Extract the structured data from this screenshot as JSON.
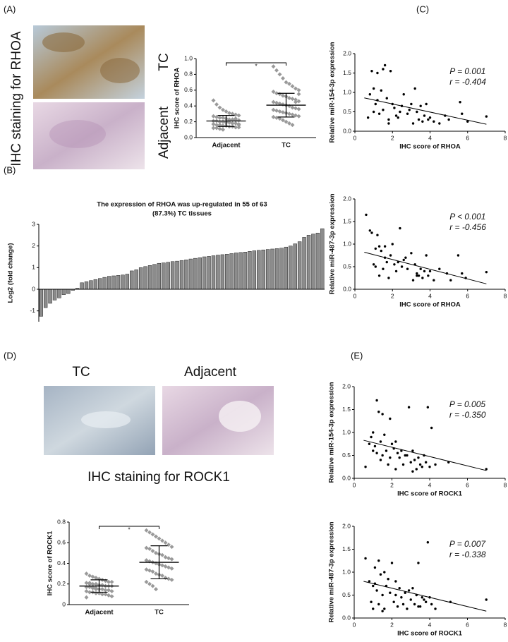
{
  "figure": {
    "panels": [
      "(A)",
      "(B)",
      "(C)",
      "(D)",
      "(E)"
    ],
    "rhoa_staining": "IHC staining for RHOA",
    "rhoa_tc": "TC",
    "rhoa_adjacent": "Adjacent",
    "rock1_tc": "TC",
    "rock1_adjacent": "Adjacent",
    "rock1_staining": "IHC staining for ROCK1"
  },
  "chart_data": [
    {
      "type": "strip",
      "ylabel": "IHC score of RHOA",
      "categories": [
        "Adjacent",
        "TC"
      ],
      "values": [
        [
          0.47,
          0.42,
          0.38,
          0.35,
          0.33,
          0.31,
          0.3,
          0.29,
          0.28,
          0.27,
          0.26,
          0.25,
          0.25,
          0.24,
          0.23,
          0.23,
          0.22,
          0.22,
          0.21,
          0.21,
          0.2,
          0.2,
          0.19,
          0.19,
          0.18,
          0.18,
          0.17,
          0.17,
          0.16,
          0.16,
          0.15,
          0.15,
          0.14,
          0.14,
          0.13,
          0.13,
          0.12,
          0.12,
          0.11,
          0.1,
          0.2,
          0.22,
          0.18,
          0.24,
          0.16
        ],
        [
          0.9,
          0.85,
          0.8,
          0.75,
          0.7,
          0.68,
          0.65,
          0.62,
          0.6,
          0.58,
          0.56,
          0.55,
          0.53,
          0.52,
          0.5,
          0.49,
          0.48,
          0.46,
          0.45,
          0.44,
          0.43,
          0.42,
          0.41,
          0.4,
          0.38,
          0.37,
          0.36,
          0.35,
          0.34,
          0.33,
          0.32,
          0.31,
          0.3,
          0.29,
          0.28,
          0.27,
          0.26,
          0.25,
          0.24,
          0.22,
          0.2,
          0.18,
          0.16,
          0.45,
          0.55
        ]
      ],
      "means": [
        0.21,
        0.41
      ],
      "sds": [
        0.07,
        0.15
      ],
      "color": "#9a9a9a",
      "significance": "*",
      "ylim": [
        0,
        1
      ],
      "yticks": [
        {
          "value": 0,
          "label": "0.0"
        },
        0.2,
        0.4,
        0.6,
        0.8,
        {
          "value": 1,
          "label": "1.0"
        }
      ]
    },
    {
      "type": "bar",
      "title": [
        "The expression of RHOA was up-regulated in 55 of 63",
        "(87.3%) TC tissues"
      ],
      "ylabel": "Log2 (fold change)",
      "color": "#8c8c8c",
      "values": [
        -1.25,
        -0.85,
        -0.65,
        -0.5,
        -0.4,
        -0.25,
        -0.2,
        -0.05,
        0.05,
        0.3,
        0.35,
        0.4,
        0.45,
        0.5,
        0.55,
        0.6,
        0.62,
        0.64,
        0.66,
        0.7,
        0.85,
        0.9,
        1.0,
        1.05,
        1.1,
        1.15,
        1.2,
        1.22,
        1.25,
        1.28,
        1.3,
        1.33,
        1.36,
        1.4,
        1.43,
        1.46,
        1.5,
        1.52,
        1.55,
        1.58,
        1.6,
        1.62,
        1.65,
        1.68,
        1.7,
        1.72,
        1.75,
        1.78,
        1.8,
        1.82,
        1.84,
        1.86,
        1.88,
        1.9,
        1.95,
        2.0,
        2.1,
        2.2,
        2.4,
        2.5,
        2.55,
        2.6,
        2.8
      ],
      "ylim": [
        -1.5,
        3
      ],
      "yticks": [
        -1,
        0,
        1,
        2,
        3
      ]
    },
    {
      "type": "scatter",
      "xlabel": "IHC score of RHOA",
      "ylabel": "Relative miR-154-3p expression",
      "annotations": [
        "P = 0.001",
        "r = -0.404"
      ],
      "color": "#000000",
      "x": [
        0.7,
        0.8,
        0.9,
        1.0,
        1.0,
        1.1,
        1.2,
        1.2,
        1.3,
        1.4,
        1.5,
        1.5,
        1.6,
        1.7,
        1.8,
        1.9,
        2.0,
        2.1,
        2.2,
        2.3,
        2.4,
        2.5,
        2.6,
        2.8,
        3.0,
        3.1,
        3.2,
        3.3,
        3.4,
        3.5,
        3.6,
        3.7,
        3.8,
        3.9,
        4.0,
        4.2,
        4.5,
        4.8,
        5.0,
        5.6,
        5.7,
        6.0,
        7.0,
        1.8,
        2.9
      ],
      "y": [
        0.35,
        0.95,
        1.55,
        0.5,
        1.1,
        0.7,
        0.8,
        1.5,
        0.45,
        1.05,
        0.55,
        1.6,
        1.7,
        0.85,
        0.3,
        1.55,
        0.7,
        0.6,
        0.4,
        0.35,
        0.5,
        0.65,
        0.95,
        0.45,
        0.7,
        0.2,
        1.1,
        0.5,
        0.3,
        0.65,
        0.25,
        0.4,
        0.7,
        0.3,
        0.35,
        0.25,
        0.2,
        0.4,
        0.3,
        0.75,
        0.45,
        0.25,
        0.38,
        0.2,
        0.55
      ],
      "trend": {
        "x": [
          0.5,
          7
        ],
        "y": [
          0.86,
          0.18
        ]
      },
      "xlim": [
        0,
        8
      ],
      "xticks": [
        0,
        2,
        4,
        6,
        8
      ],
      "ylim": [
        0,
        2
      ],
      "yticks": [
        {
          "value": 0,
          "label": "0.0"
        },
        0.5,
        {
          "value": 1,
          "label": "1.0"
        },
        1.5,
        {
          "value": 2,
          "label": "2.0"
        }
      ]
    },
    {
      "type": "scatter",
      "xlabel": "IHC score of RHOA",
      "ylabel": "Relative miR-487-3p expression",
      "annotations": [
        "P < 0.001",
        "r = -0.456"
      ],
      "color": "#000000",
      "x": [
        0.6,
        0.8,
        0.9,
        1.0,
        1.1,
        1.1,
        1.2,
        1.3,
        1.3,
        1.4,
        1.5,
        1.6,
        1.6,
        1.7,
        1.8,
        1.9,
        2.0,
        2.1,
        2.2,
        2.4,
        2.5,
        2.6,
        2.7,
        2.8,
        3.0,
        3.1,
        3.2,
        3.3,
        3.4,
        3.5,
        3.6,
        3.7,
        3.8,
        3.9,
        4.0,
        4.2,
        4.5,
        4.9,
        5.1,
        5.5,
        5.7,
        5.9,
        7.0,
        2.3,
        3.3
      ],
      "y": [
        1.65,
        1.3,
        1.25,
        0.55,
        0.9,
        0.5,
        1.2,
        0.95,
        0.3,
        0.85,
        0.45,
        0.95,
        0.7,
        0.6,
        0.25,
        0.75,
        1.0,
        0.55,
        0.4,
        1.35,
        0.5,
        0.65,
        0.7,
        0.45,
        0.8,
        0.2,
        0.55,
        0.35,
        0.3,
        0.45,
        0.25,
        0.4,
        0.75,
        0.3,
        0.4,
        0.2,
        0.45,
        0.35,
        0.2,
        0.75,
        0.35,
        0.25,
        0.38,
        0.6,
        0.3
      ],
      "trend": {
        "x": [
          0.5,
          7
        ],
        "y": [
          0.82,
          0.12
        ]
      },
      "xlim": [
        0,
        8
      ],
      "xticks": [
        0,
        2,
        4,
        6,
        8
      ],
      "ylim": [
        0,
        2
      ],
      "yticks": [
        {
          "value": 0,
          "label": "0.0"
        },
        0.5,
        {
          "value": 1,
          "label": "1.0"
        },
        1.5,
        {
          "value": 2,
          "label": "2.0"
        }
      ]
    },
    {
      "type": "scatter",
      "xlabel": "IHC score of ROCK1",
      "ylabel": "Relative miR-154-3p expression",
      "annotations": [
        "P = 0.005",
        "r = -0.350"
      ],
      "color": "#000000",
      "x": [
        0.6,
        0.8,
        0.9,
        1.0,
        1.0,
        1.1,
        1.2,
        1.2,
        1.3,
        1.4,
        1.5,
        1.5,
        1.6,
        1.7,
        1.8,
        1.9,
        2.0,
        2.1,
        2.2,
        2.3,
        2.4,
        2.5,
        2.6,
        2.8,
        2.9,
        3.0,
        3.1,
        3.2,
        3.3,
        3.4,
        3.5,
        3.6,
        3.7,
        3.8,
        3.9,
        4.0,
        4.1,
        4.3,
        5.0,
        7.0,
        1.4,
        2.2,
        2.7,
        3.1,
        1.9
      ],
      "y": [
        0.25,
        0.75,
        0.9,
        0.6,
        1.0,
        0.7,
        1.7,
        0.55,
        1.45,
        0.8,
        1.4,
        0.5,
        0.95,
        0.6,
        0.3,
        1.3,
        0.75,
        0.65,
        0.2,
        0.55,
        0.45,
        0.6,
        0.3,
        0.5,
        1.55,
        0.35,
        0.6,
        0.4,
        0.2,
        0.45,
        0.3,
        0.25,
        0.5,
        0.35,
        1.55,
        0.25,
        1.1,
        0.3,
        0.35,
        0.2,
        0.4,
        0.8,
        0.5,
        0.15,
        0.45
      ],
      "trend": {
        "x": [
          0.5,
          7
        ],
        "y": [
          0.83,
          0.17
        ]
      },
      "xlim": [
        0,
        8
      ],
      "xticks": [
        0,
        2,
        4,
        6,
        8
      ],
      "ylim": [
        0,
        2
      ],
      "yticks": [
        {
          "value": 0,
          "label": "0.0"
        },
        0.5,
        {
          "value": 1,
          "label": "1.0"
        },
        1.5,
        {
          "value": 2,
          "label": "2.0"
        }
      ]
    },
    {
      "type": "scatter",
      "xlabel": "IHC score of ROCK1",
      "ylabel": "Relative miR-487-3p expression",
      "annotations": [
        "P = 0.007",
        "r = -0.338"
      ],
      "color": "#000000",
      "x": [
        0.6,
        0.8,
        0.9,
        1.0,
        1.1,
        1.1,
        1.2,
        1.3,
        1.3,
        1.4,
        1.5,
        1.6,
        1.6,
        1.7,
        1.8,
        1.9,
        2.0,
        2.1,
        2.2,
        2.3,
        2.4,
        2.5,
        2.6,
        2.7,
        2.8,
        3.0,
        3.1,
        3.2,
        3.3,
        3.4,
        3.5,
        3.6,
        3.7,
        3.8,
        3.9,
        4.0,
        4.1,
        4.3,
        5.1,
        7.0,
        1.5,
        2.2,
        2.9,
        3.4,
        1.0
      ],
      "y": [
        1.3,
        0.8,
        0.35,
        0.2,
        0.75,
        1.1,
        0.6,
        1.25,
        0.3,
        0.95,
        0.5,
        1.0,
        0.2,
        0.7,
        0.85,
        0.55,
        1.2,
        0.35,
        0.8,
        0.25,
        0.65,
        0.45,
        0.3,
        0.55,
        0.2,
        0.4,
        0.65,
        0.3,
        0.5,
        1.2,
        0.25,
        0.45,
        0.4,
        0.35,
        1.65,
        0.45,
        0.3,
        0.2,
        0.35,
        0.4,
        0.15,
        0.5,
        0.6,
        0.25,
        0.7
      ],
      "trend": {
        "x": [
          0.5,
          7
        ],
        "y": [
          0.8,
          0.15
        ]
      },
      "xlim": [
        0,
        8
      ],
      "xticks": [
        0,
        2,
        4,
        6,
        8
      ],
      "ylim": [
        0,
        2
      ],
      "yticks": [
        {
          "value": 0,
          "label": "0.0"
        },
        0.5,
        {
          "value": 1,
          "label": "1.0"
        },
        1.5,
        {
          "value": 2,
          "label": "2.0"
        }
      ]
    },
    {
      "type": "strip",
      "ylabel": "IHC score of ROCK1",
      "categories": [
        "Adjacent",
        "TC"
      ],
      "values": [
        [
          0.3,
          0.28,
          0.27,
          0.26,
          0.25,
          0.24,
          0.23,
          0.22,
          0.22,
          0.21,
          0.21,
          0.2,
          0.2,
          0.19,
          0.19,
          0.18,
          0.18,
          0.18,
          0.17,
          0.17,
          0.16,
          0.16,
          0.15,
          0.15,
          0.14,
          0.14,
          0.13,
          0.13,
          0.12,
          0.12,
          0.11,
          0.11,
          0.1,
          0.1,
          0.09,
          0.08,
          0.07,
          0.2,
          0.17,
          0.15
        ],
        [
          0.72,
          0.7,
          0.68,
          0.66,
          0.64,
          0.62,
          0.6,
          0.58,
          0.56,
          0.55,
          0.54,
          0.52,
          0.5,
          0.49,
          0.48,
          0.46,
          0.45,
          0.44,
          0.43,
          0.42,
          0.41,
          0.4,
          0.39,
          0.38,
          0.37,
          0.36,
          0.35,
          0.34,
          0.33,
          0.32,
          0.3,
          0.29,
          0.28,
          0.26,
          0.25,
          0.24,
          0.22,
          0.2,
          0.18,
          0.15
        ]
      ],
      "means": [
        0.18,
        0.41
      ],
      "sds": [
        0.06,
        0.16
      ],
      "color": "#9a9a9a",
      "significance": "*",
      "ylim": [
        0,
        0.8
      ],
      "yticks": [
        0,
        0.2,
        0.4,
        0.6,
        0.8
      ]
    }
  ]
}
